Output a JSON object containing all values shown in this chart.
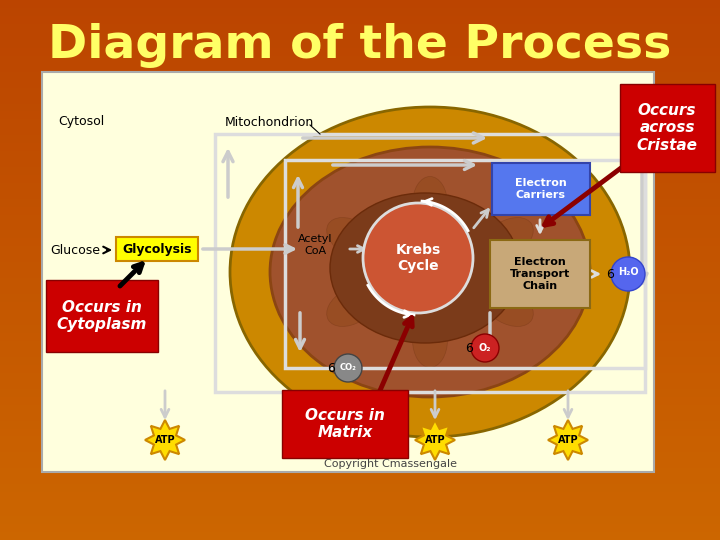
{
  "title": "Diagram of the Process",
  "title_color": "#FFFF66",
  "title_fontsize": 36,
  "bg_top": "#CC6600",
  "bg_bottom": "#BB4400",
  "diagram_bg": "#FFFFDD",
  "labels": {
    "cytosol": "Cytosol",
    "mitochondrion": "Mitochondrion",
    "glucose": "Glucose",
    "glycolysis": "Glycolysis",
    "acetyl_coa": "Acetyl\nCoA",
    "krebs": "Krebs\nCycle",
    "electron_carriers": "Electron\nCarriers",
    "etc": "Electron\nTransport\nChain",
    "h2o": "H₂O",
    "co2": "CO₂",
    "o2": "O₂",
    "atp": "ATP",
    "occurs_cristae": "Occurs\nacross\nCristae",
    "occurs_cytoplasm": "Occurs in\nCytoplasm",
    "occurs_matrix": "Occurs in\nMatrix",
    "copyright": "Copyright Cmassengale"
  },
  "colors": {
    "mito_outer": "#CC8800",
    "mito_inner": "#A0522D",
    "mito_dark": "#7B3B1A",
    "yellow_box": "#FFFF00",
    "blue_box": "#5577EE",
    "tan_box": "#C8A878",
    "red_bg": "#CC0000",
    "dark_red": "#8B0000",
    "white_arrow": "#DDDDDD",
    "krebs_circle": "#CC5533",
    "co2_gray": "#888888",
    "o2_red": "#CC2222",
    "h2o_blue": "#5566EE",
    "atp_yellow": "#FFDD00",
    "atp_edge": "#CC8800"
  }
}
